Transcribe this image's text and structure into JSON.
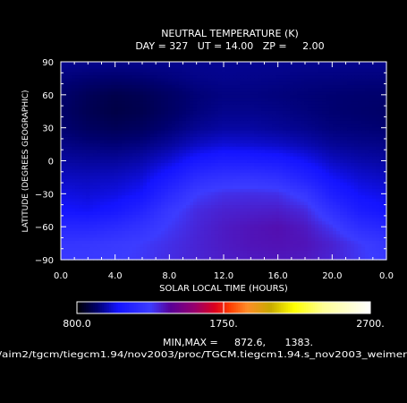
{
  "chart_data": {
    "type": "heatmap",
    "title": "NEUTRAL TEMPERATURE (K)",
    "subtitle": "DAY = 327   UT = 14.00   ZP =     2.00",
    "xlabel": "SOLAR LOCAL TIME (HOURS)",
    "ylabel": "LATITUDE (DEGREES GEOGRAPHIC)",
    "xlim": [
      0,
      24
    ],
    "ylim": [
      -90,
      90
    ],
    "x_ticks": [
      "0.0",
      "4.0",
      "8.0",
      "12.0",
      "16.0",
      "20.0",
      "0.0"
    ],
    "x_tick_values": [
      0,
      4,
      8,
      12,
      16,
      20,
      24
    ],
    "y_ticks": [
      "−90",
      "−60",
      "−30",
      "0",
      "30",
      "60",
      "90"
    ],
    "y_tick_values": [
      -90,
      -60,
      -30,
      0,
      30,
      60,
      90
    ],
    "colorbar": {
      "min": 800,
      "max": 2700,
      "labels": [
        "800.0",
        "1750.",
        "2700."
      ],
      "label_values": [
        800,
        1750,
        2700
      ]
    },
    "minmax_label": "MIN,MAX =",
    "min_value": "872.6,",
    "max_value": "1383.",
    "field": {
      "lt": [
        0,
        2,
        4,
        6,
        8,
        10,
        12,
        14,
        16,
        18,
        20,
        22,
        24
      ],
      "lat": [
        -88,
        -75,
        -60,
        -45,
        -30,
        -15,
        0,
        15,
        30,
        45,
        60,
        75,
        88
      ],
      "temps": [
        [
          1255,
          1260,
          1270,
          1285,
          1310,
          1330,
          1345,
          1355,
          1360,
          1355,
          1330,
          1290,
          1255
        ],
        [
          1240,
          1245,
          1260,
          1280,
          1305,
          1330,
          1350,
          1365,
          1370,
          1365,
          1335,
          1285,
          1240
        ],
        [
          1160,
          1160,
          1185,
          1230,
          1285,
          1325,
          1350,
          1365,
          1375,
          1355,
          1290,
          1200,
          1160
        ],
        [
          1070,
          1060,
          1085,
          1150,
          1255,
          1315,
          1335,
          1340,
          1345,
          1320,
          1210,
          1110,
          1070
        ],
        [
          1040,
          1030,
          1040,
          1070,
          1180,
          1275,
          1305,
          1310,
          1305,
          1250,
          1120,
          1060,
          1040
        ],
        [
          1010,
          1005,
          1010,
          1030,
          1100,
          1190,
          1225,
          1230,
          1210,
          1140,
          1060,
          1025,
          1010
        ],
        [
          980,
          975,
          975,
          990,
          1030,
          1090,
          1120,
          1115,
          1100,
          1060,
          1010,
          990,
          980
        ],
        [
          955,
          945,
          940,
          950,
          975,
          1010,
          1030,
          1025,
          1015,
          995,
          970,
          960,
          955
        ],
        [
          935,
          915,
          905,
          915,
          940,
          965,
          980,
          980,
          970,
          960,
          945,
          940,
          935
        ],
        [
          925,
          900,
          885,
          895,
          920,
          945,
          960,
          960,
          955,
          945,
          935,
          930,
          925
        ],
        [
          930,
          905,
          890,
          900,
          920,
          940,
          950,
          950,
          945,
          940,
          935,
          932,
          930
        ],
        [
          945,
          935,
          930,
          935,
          945,
          955,
          960,
          958,
          955,
          950,
          948,
          946,
          945
        ],
        [
          960,
          958,
          956,
          957,
          960,
          963,
          965,
          964,
          963,
          962,
          961,
          960,
          960
        ]
      ]
    }
  },
  "footer": {
    "path": "/aim2/tgcm/tiegcm1.94/nov2003/proc/TGCM.tiegcm1.94.s_nov2003_weimer"
  }
}
